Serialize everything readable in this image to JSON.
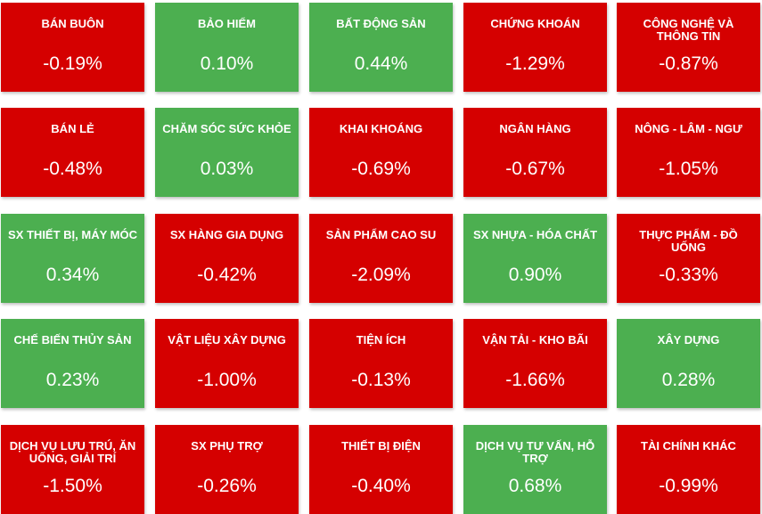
{
  "colors": {
    "up": "#4caf50",
    "down": "#d50000"
  },
  "sectors": [
    {
      "name": "BÁN BUÔN",
      "change": "-0.19%",
      "direction": "down"
    },
    {
      "name": "BẢO HIỂM",
      "change": "0.10%",
      "direction": "up"
    },
    {
      "name": "BẤT ĐỘNG SẢN",
      "change": "0.44%",
      "direction": "up"
    },
    {
      "name": "CHỨNG KHOÁN",
      "change": "-1.29%",
      "direction": "down"
    },
    {
      "name": "CÔNG NGHỆ VÀ THÔNG TIN",
      "change": "-0.87%",
      "direction": "down"
    },
    {
      "name": "BÁN LẺ",
      "change": "-0.48%",
      "direction": "down"
    },
    {
      "name": "CHĂM SÓC SỨC KHỎE",
      "change": "0.03%",
      "direction": "up"
    },
    {
      "name": "KHAI KHOÁNG",
      "change": "-0.69%",
      "direction": "down"
    },
    {
      "name": "NGÂN HÀNG",
      "change": "-0.67%",
      "direction": "down"
    },
    {
      "name": "NÔNG - LÂM - NGƯ",
      "change": "-1.05%",
      "direction": "down"
    },
    {
      "name": "SX THIẾT BỊ, MÁY MÓC",
      "change": "0.34%",
      "direction": "up"
    },
    {
      "name": "SX HÀNG GIA DỤNG",
      "change": "-0.42%",
      "direction": "down"
    },
    {
      "name": "SẢN PHẨM CAO SU",
      "change": "-2.09%",
      "direction": "down"
    },
    {
      "name": "SX NHỰA - HÓA CHẤT",
      "change": "0.90%",
      "direction": "up"
    },
    {
      "name": "THỰC PHẨM - ĐỒ UỐNG",
      "change": "-0.33%",
      "direction": "down"
    },
    {
      "name": "CHẾ BIẾN THỦY SẢN",
      "change": "0.23%",
      "direction": "up"
    },
    {
      "name": "VẬT LIỆU XÂY DỰNG",
      "change": "-1.00%",
      "direction": "down"
    },
    {
      "name": "TIỆN ÍCH",
      "change": "-0.13%",
      "direction": "down"
    },
    {
      "name": "VẬN TẢI - KHO BÃI",
      "change": "-1.66%",
      "direction": "down"
    },
    {
      "name": "XÂY DỰNG",
      "change": "0.28%",
      "direction": "up"
    },
    {
      "name": "DỊCH VỤ LƯU TRÚ, ĂN UỐNG, GIẢI TRÍ",
      "change": "-1.50%",
      "direction": "down"
    },
    {
      "name": "SX PHỤ TRỢ",
      "change": "-0.26%",
      "direction": "down"
    },
    {
      "name": "THIẾT BỊ ĐIỆN",
      "change": "-0.40%",
      "direction": "down"
    },
    {
      "name": "DỊCH VỤ TƯ VẤN, HỖ TRỢ",
      "change": "0.68%",
      "direction": "up"
    },
    {
      "name": "TÀI CHÍNH KHÁC",
      "change": "-0.99%",
      "direction": "down"
    }
  ]
}
